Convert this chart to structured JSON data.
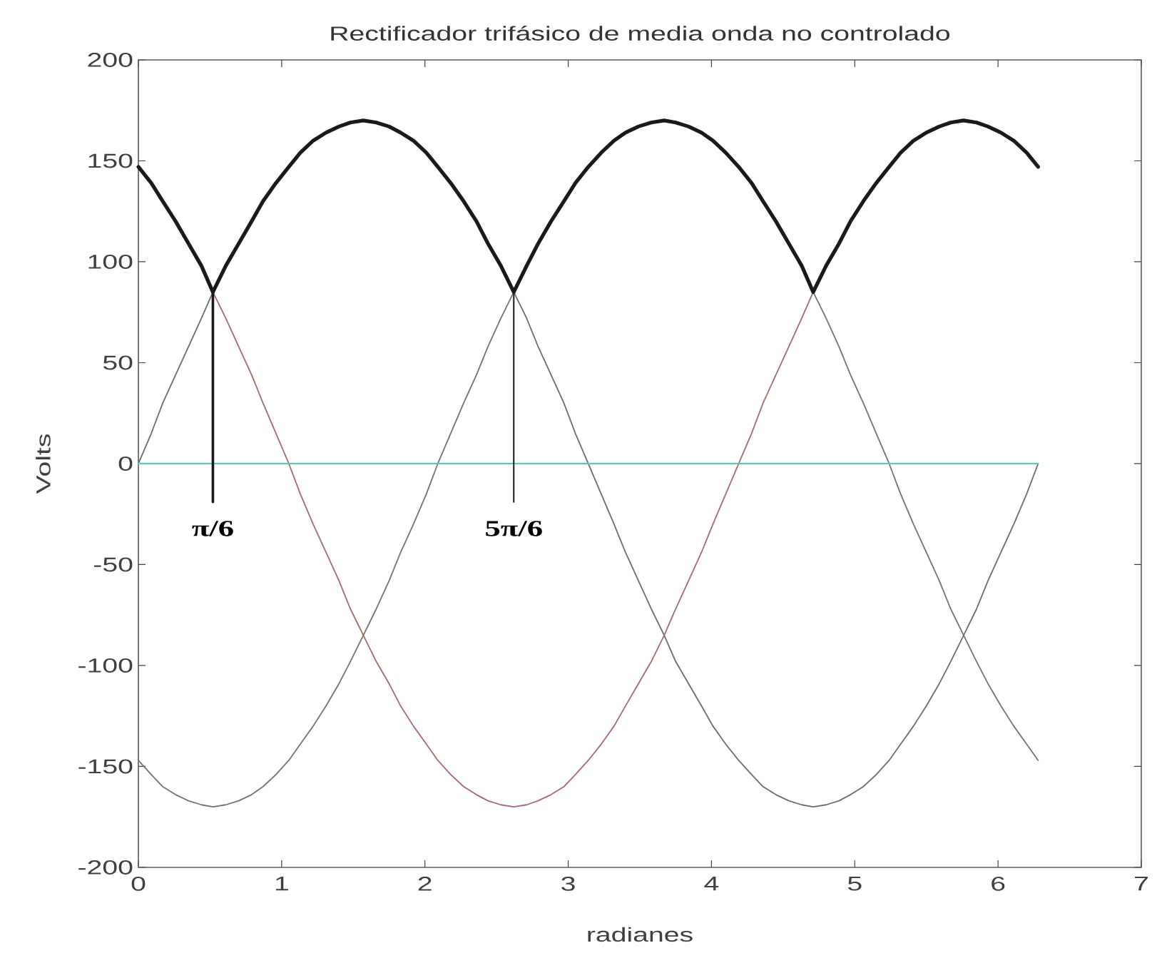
{
  "chart_data": {
    "type": "line",
    "title": "Rectificador trifásico de media onda no controlado",
    "xlabel": "radianes",
    "ylabel": "Volts",
    "x": [
      0,
      0.09,
      0.17,
      0.26,
      0.35,
      0.44,
      0.52,
      0.61,
      0.7,
      0.79,
      0.87,
      0.96,
      1.05,
      1.13,
      1.22,
      1.31,
      1.4,
      1.48,
      1.57,
      1.66,
      1.75,
      1.83,
      1.92,
      2.01,
      2.09,
      2.18,
      2.27,
      2.36,
      2.44,
      2.53,
      2.62,
      2.71,
      2.79,
      2.88,
      2.97,
      3.05,
      3.14,
      3.23,
      3.32,
      3.4,
      3.49,
      3.58,
      3.67,
      3.75,
      3.84,
      3.93,
      4.01,
      4.1,
      4.19,
      4.28,
      4.36,
      4.45,
      4.54,
      4.63,
      4.71,
      4.8,
      4.89,
      4.97,
      5.06,
      5.15,
      5.24,
      5.32,
      5.41,
      5.5,
      5.59,
      5.67,
      5.76,
      5.85,
      5.93,
      6.02,
      6.11,
      6.2,
      6.28
    ],
    "series": [
      {
        "color": "#6b6b78",
        "values": [
          0,
          15,
          30,
          44,
          58,
          72,
          85,
          98,
          109,
          120,
          130,
          139,
          147,
          154,
          160,
          164,
          167,
          169,
          170,
          169,
          167,
          164,
          160,
          154,
          147,
          139,
          130,
          120,
          109,
          98,
          85,
          72,
          58,
          44,
          30,
          15,
          0,
          -15,
          -30,
          -44,
          -58,
          -72,
          -85,
          -98,
          -109,
          -120,
          -130,
          -139,
          -147,
          -154,
          -160,
          -164,
          -167,
          -169,
          -170,
          -169,
          -167,
          -164,
          -160,
          -154,
          -147,
          -139,
          -130,
          -120,
          -109,
          -98,
          -85,
          -72,
          -58,
          -44,
          -30,
          -15,
          0
        ]
      },
      {
        "color": "#a86a6a",
        "values": [
          147,
          139,
          130,
          120,
          109,
          98,
          85,
          72,
          58,
          44,
          30,
          15,
          0,
          -15,
          -30,
          -44,
          -58,
          -72,
          -85,
          -98,
          -109,
          -120,
          -130,
          -139,
          -147,
          -154,
          -160,
          -164,
          -167,
          -169,
          -170,
          -169,
          -167,
          -164,
          -160,
          -154,
          -147,
          -139,
          -130,
          -120,
          -109,
          -98,
          -85,
          -72,
          -58,
          -44,
          -30,
          -15,
          0,
          15,
          30,
          44,
          58,
          72,
          85,
          98,
          109,
          120,
          130,
          139,
          147,
          154,
          160,
          164,
          167,
          169,
          170,
          169,
          167,
          164,
          160,
          154,
          147
        ]
      },
      {
        "color": "#6b786b",
        "values": [
          -147,
          -154,
          -160,
          -164,
          -167,
          -169,
          -170,
          -169,
          -167,
          -164,
          -160,
          -154,
          -147,
          -139,
          -130,
          -120,
          -109,
          -98,
          -85,
          -72,
          -58,
          -44,
          -30,
          -15,
          0,
          15,
          30,
          44,
          58,
          72,
          85,
          98,
          109,
          120,
          130,
          139,
          147,
          154,
          160,
          164,
          167,
          169,
          170,
          169,
          167,
          164,
          160,
          154,
          147,
          139,
          130,
          120,
          109,
          98,
          85,
          72,
          58,
          44,
          30,
          15,
          0,
          -15,
          -30,
          -44,
          -58,
          -72,
          -85,
          -98,
          -109,
          -120,
          -130,
          -139,
          -147
        ]
      },
      {
        "color": "#5fc7c0",
        "x": [
          0,
          6.28
        ],
        "values": [
          0,
          0
        ]
      },
      {
        "color": "#1a1a1a",
        "x": [
          0.52,
          0.52
        ],
        "values": [
          85,
          -19
        ]
      },
      {
        "color": "#1a1a1a",
        "x": [
          2.62,
          2.62
        ],
        "values": [
          85,
          -19
        ]
      },
      {
        "color": "#1a1a1a",
        "values": [
          147,
          139,
          130,
          120,
          109,
          98,
          85,
          98,
          109,
          120,
          130,
          139,
          147,
          154,
          160,
          164,
          167,
          169,
          170,
          169,
          167,
          164,
          160,
          154,
          147,
          139,
          130,
          120,
          109,
          98,
          85,
          98,
          109,
          120,
          130,
          139,
          147,
          154,
          160,
          164,
          167,
          169,
          170,
          169,
          167,
          164,
          160,
          154,
          147,
          139,
          130,
          120,
          109,
          98,
          85,
          98,
          109,
          120,
          130,
          139,
          147,
          154,
          160,
          164,
          167,
          169,
          170,
          169,
          167,
          164,
          160,
          154,
          147
        ]
      }
    ],
    "xlim": [
      0,
      7
    ],
    "ylim": [
      -200,
      200
    ],
    "xticks": [
      0,
      1,
      2,
      3,
      4,
      5,
      6,
      7
    ],
    "yticks": [
      -200,
      -150,
      -100,
      -50,
      0,
      50,
      100,
      150,
      200
    ],
    "annotations": [
      {
        "text": "π/6",
        "x": 0.52,
        "y": -19
      },
      {
        "text": "5π/6",
        "x": 2.62,
        "y": -19
      }
    ]
  }
}
